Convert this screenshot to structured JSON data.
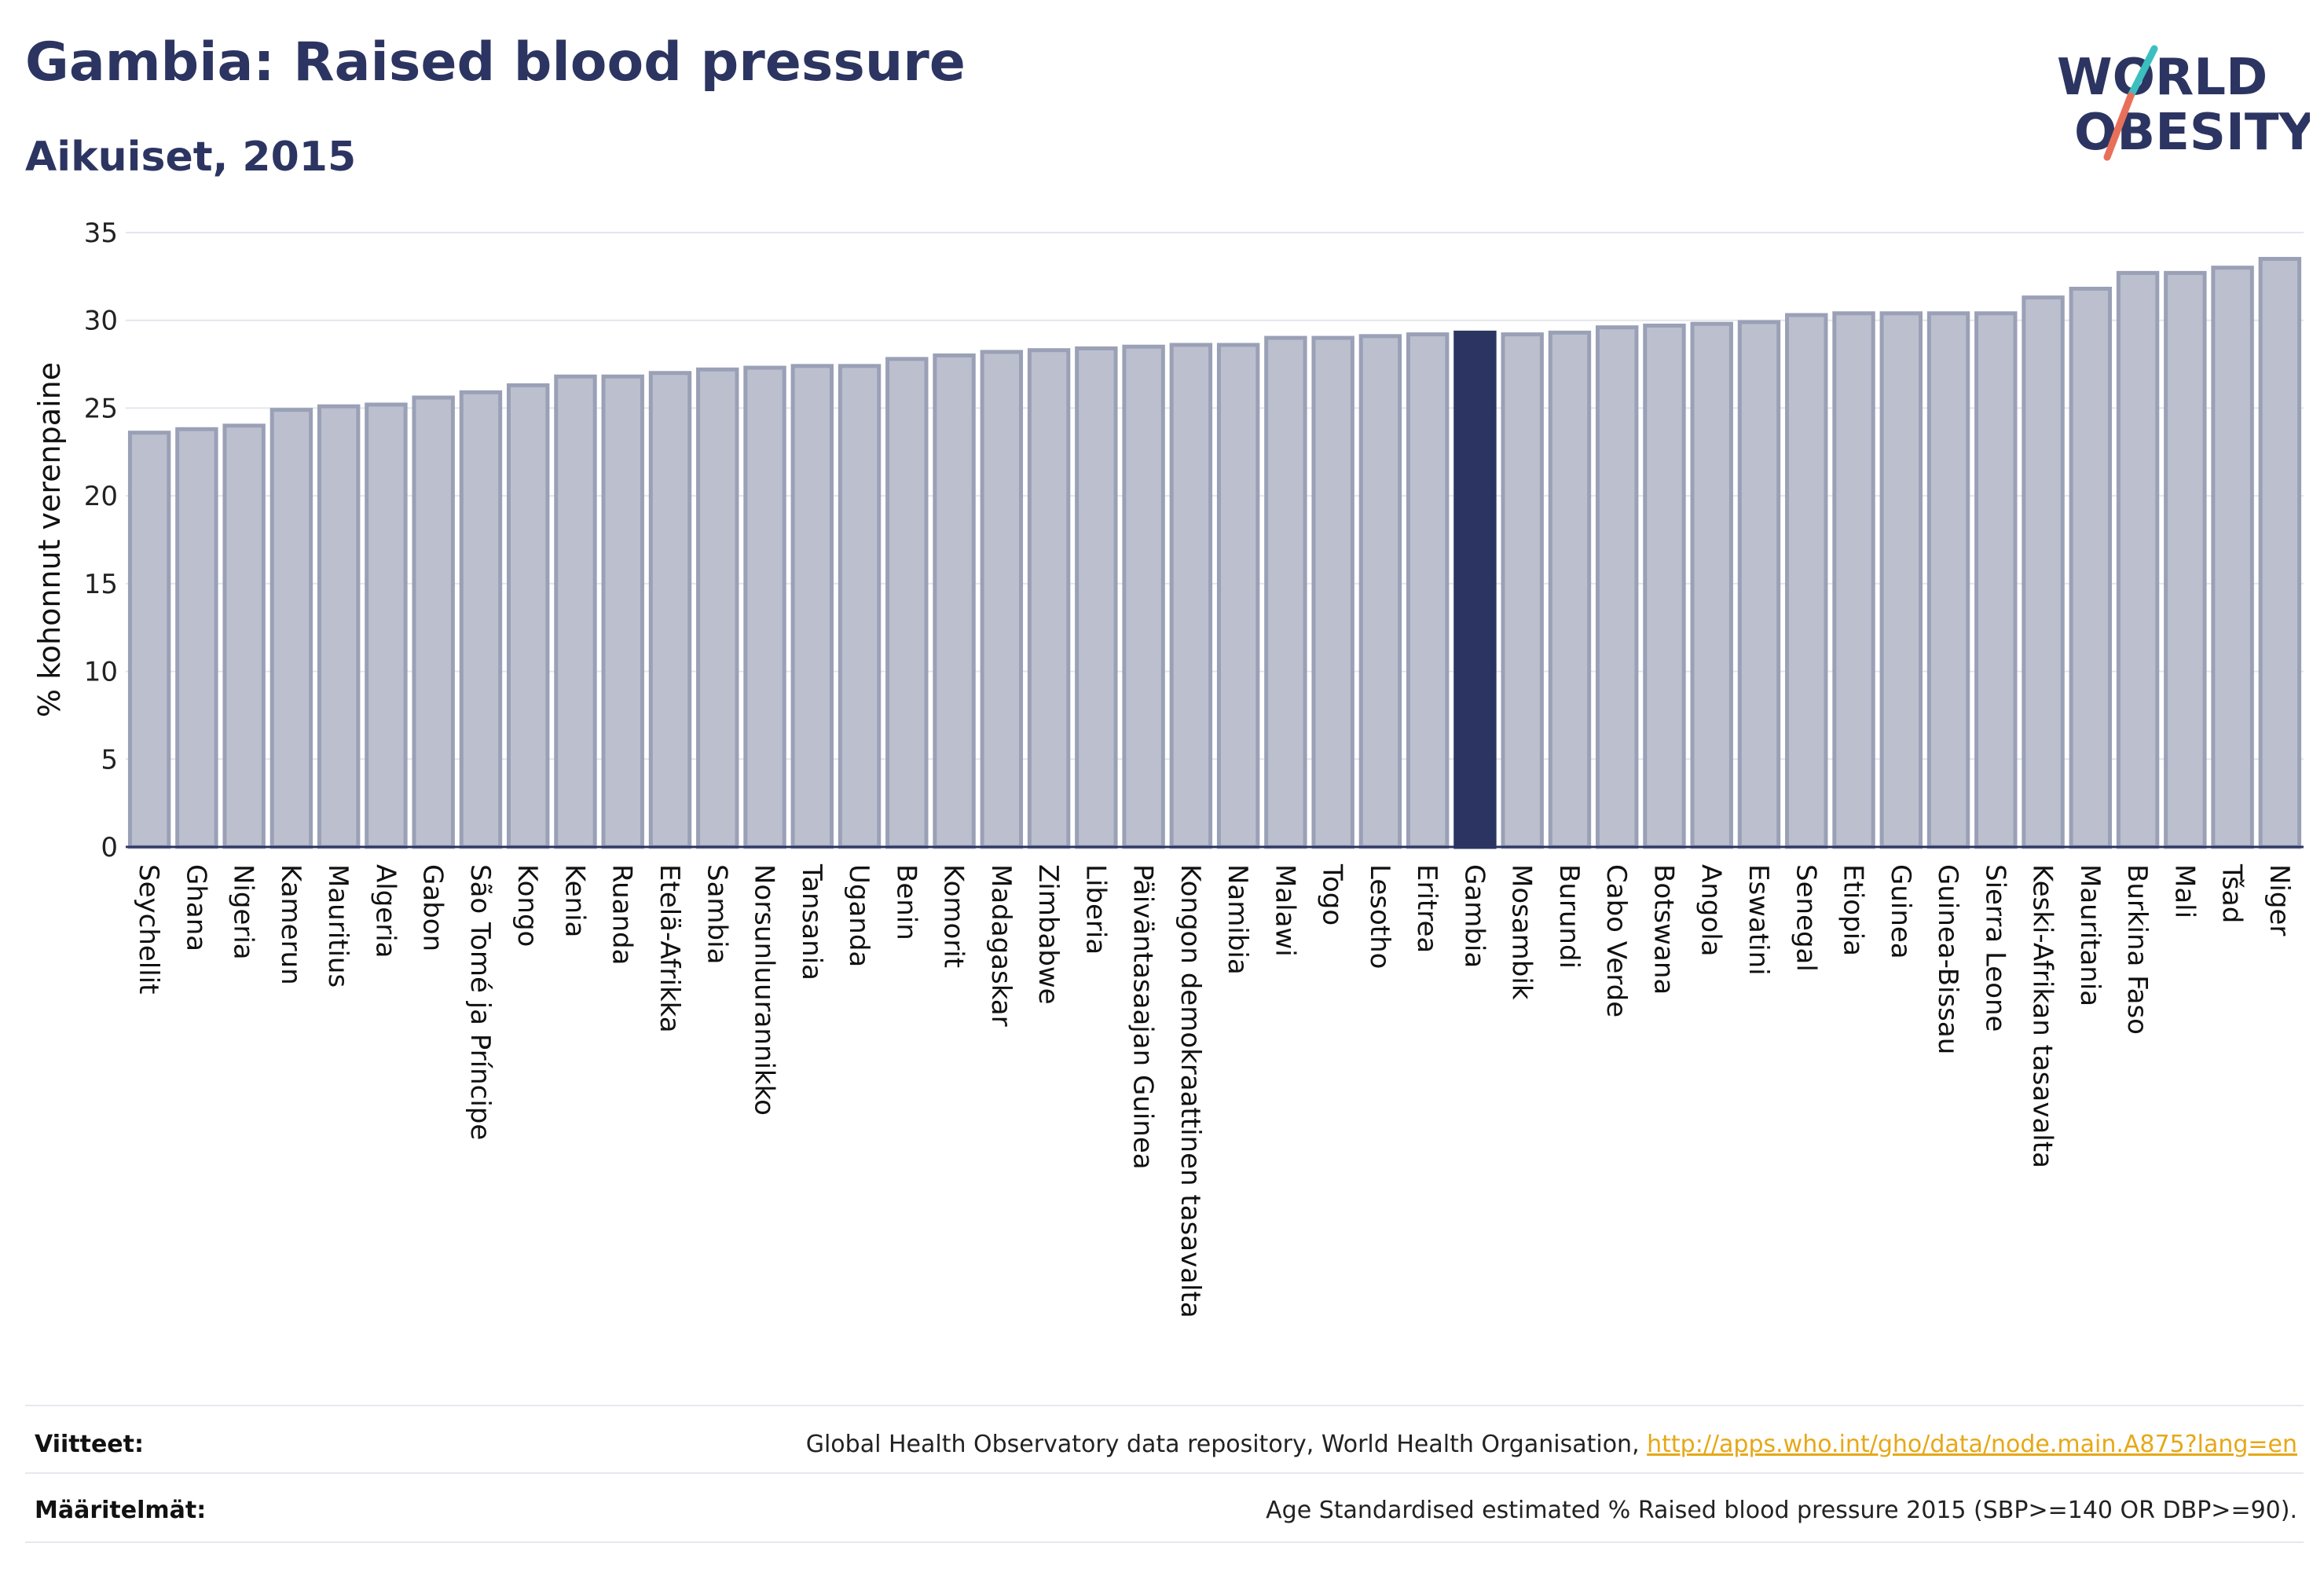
{
  "header": {
    "title": "Gambia: Raised blood pressure",
    "subtitle": "Aikuiset, 2015"
  },
  "logo": {
    "line1": "WORLD",
    "line2": "OBESITY",
    "colors": {
      "text": "#2c3561",
      "slash_top": "#3bbfbf",
      "slash_bottom": "#e8705a"
    }
  },
  "chart_data": {
    "type": "bar",
    "ylabel": "% kohonnut verenpaine",
    "ylim": [
      0,
      35
    ],
    "yticks": [
      0,
      5,
      10,
      15,
      20,
      25,
      30,
      35
    ],
    "grid": true,
    "highlight": "Gambia",
    "colors": {
      "bar": "#bcc0ce",
      "bar_border": "#9aa0b6",
      "highlight": "#2c3561"
    },
    "categories": [
      "Seychellit",
      "Ghana",
      "Nigeria",
      "Kamerun",
      "Mauritius",
      "Algeria",
      "Gabon",
      "São Tomé ja Príncipe",
      "Kongo",
      "Kenia",
      "Ruanda",
      "Etelä-Afrikka",
      "Sambia",
      "Norsunluurannikko",
      "Tansania",
      "Uganda",
      "Benin",
      "Komorit",
      "Madagaskar",
      "Zimbabwe",
      "Liberia",
      "Päiväntasaajan Guinea",
      "Kongon demokraattinen tasavalta",
      "Namibia",
      "Malawi",
      "Togo",
      "Lesotho",
      "Eritrea",
      "Gambia",
      "Mosambik",
      "Burundi",
      "Cabo Verde",
      "Botswana",
      "Angola",
      "Eswatini",
      "Senegal",
      "Etiopia",
      "Guinea",
      "Guinea-Bissau",
      "Sierra Leone",
      "Keski-Afrikan tasavalta",
      "Mauritania",
      "Burkina Faso",
      "Mali",
      "Tšad",
      "Niger"
    ],
    "values": [
      23.6,
      23.8,
      24.0,
      24.9,
      25.1,
      25.2,
      25.6,
      25.9,
      26.3,
      26.8,
      26.8,
      27.0,
      27.2,
      27.3,
      27.4,
      27.4,
      27.8,
      28.0,
      28.2,
      28.3,
      28.4,
      28.5,
      28.6,
      28.6,
      29.0,
      29.0,
      29.1,
      29.2,
      29.3,
      29.2,
      29.3,
      29.6,
      29.7,
      29.8,
      29.9,
      30.3,
      30.4,
      30.4,
      30.4,
      30.4,
      31.3,
      31.8,
      32.7,
      32.7,
      33.0,
      33.5
    ]
  },
  "footer": {
    "references_label": "Viitteet:",
    "references_text": "Global Health Observatory data repository, World Health Organisation, ",
    "references_link": "http://apps.who.int/gho/data/node.main.A875?lang=en",
    "definitions_label": "Määritelmät:",
    "definitions_text": "Age Standardised estimated % Raised blood pressure 2015 (SBP>=140 OR DBP>=90)."
  }
}
